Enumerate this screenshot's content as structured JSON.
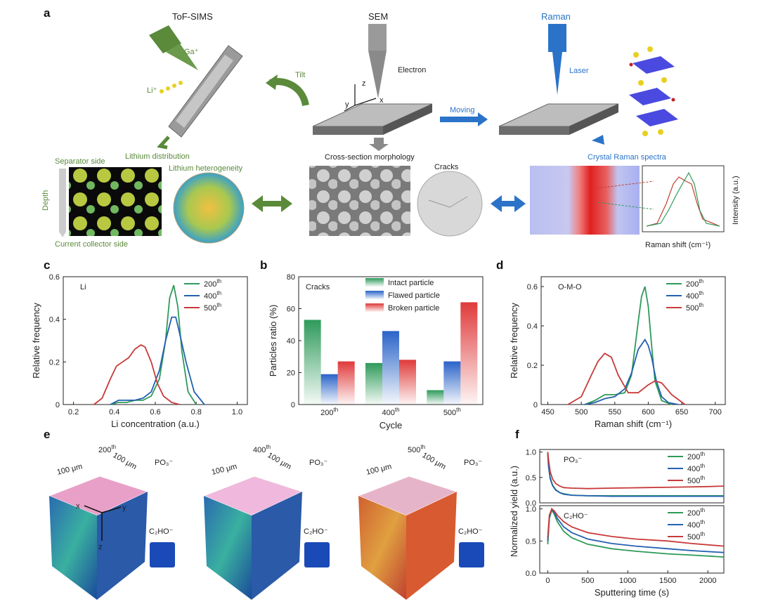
{
  "panels": {
    "a": "a",
    "b": "b",
    "c": "c",
    "d": "d",
    "e": "e",
    "f": "f"
  },
  "panel_a": {
    "tof_sims": "ToF-SIMS",
    "ga": "Ga⁺",
    "li": "Li⁺",
    "lithium_distribution": "Lithium distribution",
    "separator_side": "Separator side",
    "depth": "Depth",
    "current_collector_side": "Current collector side",
    "lithium_heterogeneity": "Lithium heterogeneity",
    "tilt": "Tilt",
    "sem": "SEM",
    "electron": "Electron",
    "axis_z": "z",
    "axis_y": "y",
    "axis_x": "x",
    "cross_section": "Cross-section morphology",
    "cracks": "Cracks",
    "moving": "Moving",
    "raman": "Raman",
    "laser": "Laser",
    "crystal_raman": "Crystal Raman spectra",
    "intensity": "Intensity (a.u.)",
    "raman_shift": "Raman shift (cm⁻¹)"
  },
  "chart_data": [
    {
      "id": "c",
      "type": "line",
      "annotation": "Li",
      "xlabel": "Li concentration (a.u.)",
      "ylabel": "Relative frequency",
      "xlim": [
        0.15,
        1.05
      ],
      "ylim": [
        0,
        0.6
      ],
      "xticks": [
        "0.2",
        "0.4",
        "0.6",
        "0.8",
        "1.0"
      ],
      "yticks": [
        "0",
        "0.2",
        "0.4",
        "0.6"
      ],
      "series": [
        {
          "name": "200th",
          "color": "#2e9a5a",
          "x": [
            0.38,
            0.42,
            0.46,
            0.5,
            0.54,
            0.58,
            0.62,
            0.65,
            0.67,
            0.69,
            0.71,
            0.73,
            0.76,
            0.8
          ],
          "y": [
            0,
            0.01,
            0.01,
            0.02,
            0.02,
            0.04,
            0.12,
            0.3,
            0.5,
            0.56,
            0.46,
            0.25,
            0.06,
            0
          ]
        },
        {
          "name": "400th",
          "color": "#2460b0",
          "x": [
            0.38,
            0.42,
            0.46,
            0.5,
            0.54,
            0.58,
            0.62,
            0.65,
            0.68,
            0.7,
            0.72,
            0.75,
            0.79,
            0.84
          ],
          "y": [
            0,
            0.02,
            0.02,
            0.02,
            0.03,
            0.06,
            0.16,
            0.3,
            0.41,
            0.41,
            0.33,
            0.2,
            0.06,
            0
          ]
        },
        {
          "name": "500th",
          "color": "#c83a3a",
          "x": [
            0.3,
            0.34,
            0.38,
            0.41,
            0.44,
            0.47,
            0.5,
            0.53,
            0.55,
            0.58,
            0.61,
            0.64,
            0.68,
            0.72
          ],
          "y": [
            0,
            0.03,
            0.12,
            0.18,
            0.2,
            0.22,
            0.26,
            0.28,
            0.27,
            0.2,
            0.1,
            0.04,
            0.01,
            0
          ]
        }
      ],
      "legend": [
        "200",
        "400",
        "500"
      ],
      "legend_sup": "th"
    },
    {
      "id": "b",
      "type": "bar",
      "annotation": "Cracks",
      "xlabel": "Cycle",
      "ylabel": "Particles ratio (%)",
      "ylim": [
        0,
        80
      ],
      "yticks": [
        "0",
        "20",
        "40",
        "60",
        "80"
      ],
      "categories": [
        "200",
        "400",
        "500"
      ],
      "category_sup": "th",
      "series": [
        {
          "name": "Intact particle",
          "color": "#2e9a5a",
          "values": [
            53,
            26,
            9
          ]
        },
        {
          "name": "Flawed particle",
          "color": "#2a63c8",
          "values": [
            19,
            46,
            27
          ]
        },
        {
          "name": "Broken particle",
          "color": "#e03a3a",
          "values": [
            27,
            28,
            64
          ]
        }
      ]
    },
    {
      "id": "d",
      "type": "line",
      "annotation": "O-M-O",
      "xlabel": "Raman shift (cm⁻¹)",
      "ylabel": "Relative frequency",
      "xlim": [
        440,
        715
      ],
      "ylim": [
        0,
        0.65
      ],
      "xticks": [
        "450",
        "500",
        "550",
        "600",
        "650",
        "700"
      ],
      "yticks": [
        "0",
        "0.2",
        "0.4",
        "0.6"
      ],
      "series": [
        {
          "name": "200th",
          "color": "#2e9a5a",
          "x": [
            505,
            520,
            535,
            550,
            565,
            575,
            585,
            590,
            595,
            600,
            605,
            610,
            620,
            635
          ],
          "y": [
            0,
            0.02,
            0.05,
            0.05,
            0.06,
            0.15,
            0.42,
            0.55,
            0.6,
            0.5,
            0.3,
            0.12,
            0.02,
            0
          ]
        },
        {
          "name": "400th",
          "color": "#2460b0",
          "x": [
            505,
            520,
            535,
            550,
            565,
            575,
            585,
            595,
            600,
            605,
            612,
            620,
            630,
            645
          ],
          "y": [
            0,
            0.01,
            0.03,
            0.04,
            0.08,
            0.16,
            0.28,
            0.33,
            0.3,
            0.24,
            0.12,
            0.04,
            0.01,
            0
          ]
        },
        {
          "name": "500th",
          "color": "#c83a3a",
          "x": [
            480,
            500,
            515,
            525,
            535,
            545,
            555,
            570,
            585,
            600,
            610,
            620,
            635,
            655
          ],
          "y": [
            0,
            0.04,
            0.15,
            0.22,
            0.26,
            0.24,
            0.15,
            0.06,
            0.06,
            0.1,
            0.12,
            0.11,
            0.05,
            0
          ]
        }
      ],
      "legend": [
        "200",
        "400",
        "500"
      ],
      "legend_sup": "th"
    },
    {
      "id": "f_top",
      "type": "line",
      "annotation": "PO₃⁻",
      "xlim": [
        -100,
        2200
      ],
      "ylim": [
        0,
        1.05
      ],
      "yticks": [
        "0.0",
        "0.5",
        "1.0"
      ],
      "series": [
        {
          "name": "200th",
          "color": "#2e9a5a",
          "x": [
            0,
            10,
            30,
            60,
            100,
            150,
            200,
            300,
            500,
            800,
            1200,
            1600,
            2000,
            2200
          ],
          "y": [
            1.0,
            0.75,
            0.5,
            0.35,
            0.26,
            0.2,
            0.18,
            0.15,
            0.14,
            0.14,
            0.14,
            0.14,
            0.14,
            0.14
          ]
        },
        {
          "name": "400th",
          "color": "#2460b0",
          "x": [
            0,
            10,
            30,
            60,
            100,
            150,
            200,
            300,
            500,
            800,
            1200,
            1600,
            2000,
            2200
          ],
          "y": [
            0.97,
            0.72,
            0.48,
            0.34,
            0.25,
            0.2,
            0.17,
            0.15,
            0.14,
            0.13,
            0.13,
            0.13,
            0.13,
            0.13
          ]
        },
        {
          "name": "500th",
          "color": "#c83a3a",
          "x": [
            0,
            10,
            30,
            60,
            100,
            150,
            200,
            300,
            500,
            800,
            1200,
            1600,
            2000,
            2200
          ],
          "y": [
            1.0,
            0.85,
            0.62,
            0.47,
            0.38,
            0.33,
            0.3,
            0.29,
            0.28,
            0.29,
            0.3,
            0.31,
            0.32,
            0.33
          ]
        }
      ],
      "legend": [
        "200",
        "400",
        "500"
      ],
      "legend_sup": "th"
    },
    {
      "id": "f_bottom",
      "type": "line",
      "annotation": "C₂HO⁻",
      "xlabel": "Sputtering time (s)",
      "ylabel": "Normalized yield (a.u.)",
      "xlim": [
        -100,
        2200
      ],
      "ylim": [
        0,
        1.05
      ],
      "xticks": [
        "0",
        "500",
        "1000",
        "1500",
        "2000"
      ],
      "yticks": [
        "0.0",
        "0.5",
        "1.0"
      ],
      "series": [
        {
          "name": "200th",
          "color": "#2e9a5a",
          "x": [
            0,
            20,
            50,
            80,
            120,
            200,
            300,
            500,
            800,
            1100,
            1500,
            1800,
            2200
          ],
          "y": [
            0.45,
            0.85,
            0.98,
            0.92,
            0.8,
            0.65,
            0.55,
            0.45,
            0.38,
            0.34,
            0.3,
            0.28,
            0.25
          ]
        },
        {
          "name": "400th",
          "color": "#2460b0",
          "x": [
            0,
            20,
            50,
            80,
            120,
            200,
            300,
            500,
            800,
            1100,
            1500,
            1800,
            2200
          ],
          "y": [
            0.5,
            0.88,
            1.0,
            0.95,
            0.85,
            0.72,
            0.63,
            0.53,
            0.46,
            0.42,
            0.38,
            0.35,
            0.32
          ]
        },
        {
          "name": "500th",
          "color": "#c83a3a",
          "x": [
            0,
            20,
            50,
            80,
            120,
            200,
            300,
            500,
            800,
            1100,
            1500,
            1800,
            2200
          ],
          "y": [
            0.55,
            0.9,
            1.0,
            0.97,
            0.9,
            0.8,
            0.72,
            0.63,
            0.57,
            0.53,
            0.5,
            0.46,
            0.42
          ]
        }
      ],
      "legend": [
        "200",
        "400",
        "500"
      ],
      "legend_sup": "th"
    }
  ],
  "panel_e": {
    "cubes": [
      {
        "cycle": "200",
        "sup": "th",
        "dim1": "100 μm",
        "dim2": "100 μm",
        "ion": "PO₃⁻",
        "inset": "C₂HO⁻",
        "top": "#e8a0c8",
        "side": "#3aa0a0"
      },
      {
        "cycle": "400",
        "sup": "th",
        "dim1": "100 μm",
        "dim2": "100 μm",
        "ion": "PO₃⁻",
        "inset": "C₂HO⁻",
        "top": "#f0b8dc",
        "side": "#48b0a0"
      },
      {
        "cycle": "500",
        "sup": "th",
        "dim1": "100 μm",
        "dim2": "100 μm",
        "ion": "PO₃⁻",
        "inset": "C₂HO⁻",
        "top": "#e6b4c8",
        "side": "#e07a3a"
      }
    ],
    "axes": {
      "x": "x",
      "y": "y",
      "z": "z"
    }
  }
}
